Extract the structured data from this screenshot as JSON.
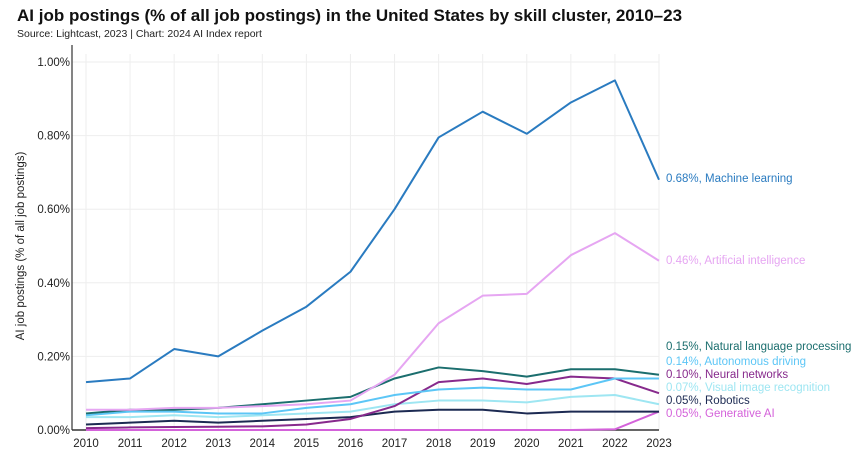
{
  "chart_data": {
    "type": "line",
    "title": "AI job postings (% of all job postings) in the United States by skill cluster, 2010–23",
    "subtitle": "Source: Lightcast, 2023 | Chart: 2024 AI Index report",
    "xlabel": "",
    "ylabel": "AI job postings (% of all job postings)",
    "ylim": [
      0,
      1.0
    ],
    "yticks": [
      "0.00%",
      "0.20%",
      "0.40%",
      "0.60%",
      "0.80%",
      "1.00%"
    ],
    "ytick_values": [
      0,
      0.2,
      0.4,
      0.6,
      0.8,
      1.0
    ],
    "x": [
      "2010",
      "2011",
      "2012",
      "2013",
      "2014",
      "2015",
      "2016",
      "2017",
      "2018",
      "2019",
      "2020",
      "2021",
      "2022",
      "2023"
    ],
    "grid": true,
    "series": [
      {
        "name": "Machine learning",
        "label": "0.68%, Machine learning",
        "color": "#2a7bc0",
        "values": [
          0.13,
          0.14,
          0.22,
          0.2,
          0.27,
          0.335,
          0.43,
          0.6,
          0.795,
          0.865,
          0.805,
          0.89,
          0.95,
          0.68
        ]
      },
      {
        "name": "Artificial intelligence",
        "label": "0.46%, Artificial intelligence",
        "color": "#e6a6f2",
        "values": [
          0.055,
          0.055,
          0.06,
          0.06,
          0.065,
          0.07,
          0.08,
          0.15,
          0.29,
          0.365,
          0.37,
          0.475,
          0.535,
          0.46
        ]
      },
      {
        "name": "Natural language processing",
        "label": "0.15%, Natural language processing",
        "color": "#1b6e6e",
        "values": [
          0.045,
          0.055,
          0.055,
          0.06,
          0.07,
          0.08,
          0.09,
          0.14,
          0.17,
          0.16,
          0.145,
          0.165,
          0.165,
          0.15
        ]
      },
      {
        "name": "Autonomous driving",
        "label": "0.14%, Autonomous driving",
        "color": "#5cc6f6",
        "values": [
          0.04,
          0.05,
          0.05,
          0.045,
          0.045,
          0.06,
          0.07,
          0.095,
          0.11,
          0.115,
          0.11,
          0.11,
          0.14,
          0.14
        ]
      },
      {
        "name": "Neural networks",
        "label": "0.10%, Neural networks",
        "color": "#872a8c",
        "values": [
          0.005,
          0.007,
          0.008,
          0.009,
          0.01,
          0.015,
          0.03,
          0.065,
          0.13,
          0.14,
          0.125,
          0.145,
          0.14,
          0.1
        ]
      },
      {
        "name": "Visual image recognition",
        "label": "0.07%, Visual image recognition",
        "color": "#9ee6f2",
        "values": [
          0.035,
          0.035,
          0.04,
          0.035,
          0.04,
          0.045,
          0.05,
          0.07,
          0.08,
          0.08,
          0.075,
          0.09,
          0.095,
          0.07
        ]
      },
      {
        "name": "Robotics",
        "label": "0.05%, Robotics",
        "color": "#1c2a52",
        "values": [
          0.015,
          0.02,
          0.025,
          0.02,
          0.025,
          0.03,
          0.035,
          0.05,
          0.055,
          0.055,
          0.045,
          0.05,
          0.05,
          0.05
        ]
      },
      {
        "name": "Generative AI",
        "label": "0.05%, Generative AI",
        "color": "#d462da",
        "values": [
          0,
          0,
          0,
          0,
          0,
          0,
          0,
          0,
          0,
          0,
          0,
          0,
          0.002,
          0.05
        ]
      }
    ]
  }
}
